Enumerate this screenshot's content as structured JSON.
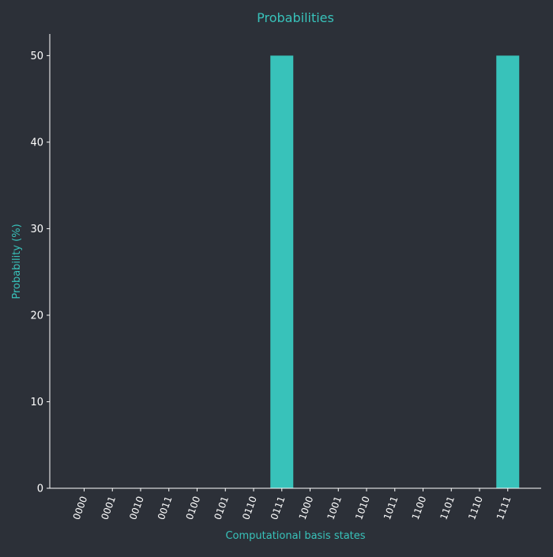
{
  "chart_data": {
    "type": "bar",
    "title": "Probabilities",
    "xlabel": "Computational basis states",
    "ylabel": "Probability (%)",
    "categories": [
      "0000",
      "0001",
      "0010",
      "0011",
      "0100",
      "0101",
      "0110",
      "0111",
      "1000",
      "1001",
      "1010",
      "1011",
      "1100",
      "1101",
      "1110",
      "1111"
    ],
    "values": [
      0,
      0,
      0,
      0,
      0,
      0,
      0,
      50,
      0,
      0,
      0,
      0,
      0,
      0,
      0,
      50
    ],
    "ylim": [
      0,
      52.5
    ],
    "yticks": [
      0,
      10,
      20,
      30,
      40,
      50
    ],
    "grid": false,
    "colors": {
      "background": "#2c3038",
      "bar": "#38c2ba",
      "accent": "#38c2ba",
      "axis": "#ffffff",
      "tick_text": "#ffffff"
    }
  }
}
